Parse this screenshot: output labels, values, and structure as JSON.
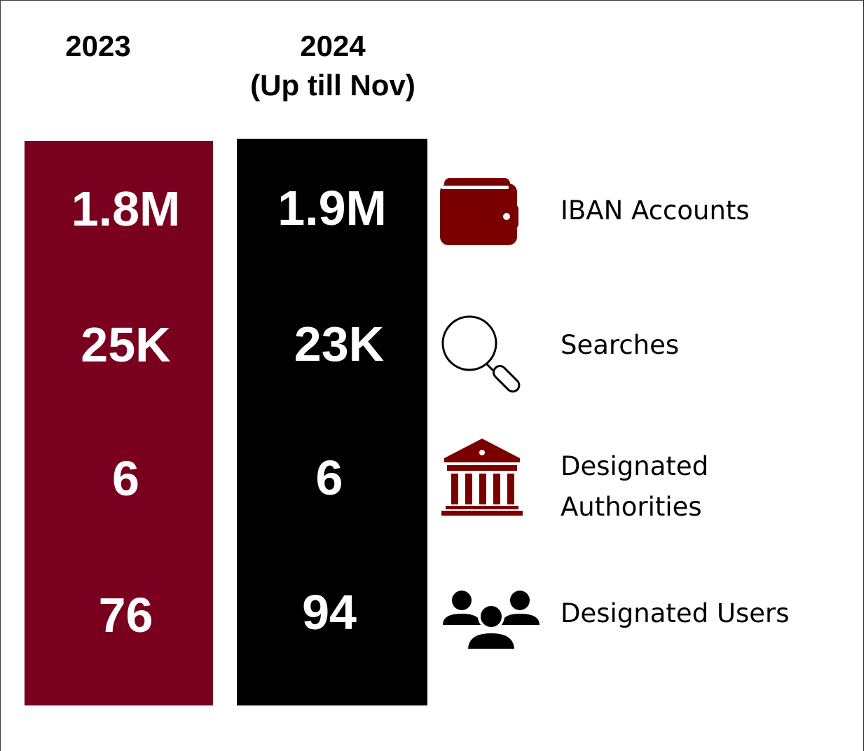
{
  "colors": {
    "year_2023": "#7a0020",
    "year_2024": "#000000",
    "icon": "#7a0000"
  },
  "columns": [
    {
      "heading": "2023",
      "values": [
        "1.8M",
        "25K",
        "6",
        "76"
      ]
    },
    {
      "heading": "2024\n(Up till Nov)",
      "heading_line1": "2024",
      "heading_line2": "(Up till Nov)",
      "values": [
        "1.9M",
        "23K",
        "6",
        "94"
      ]
    }
  ],
  "metrics": [
    {
      "label": "IBAN Accounts",
      "icon": "wallet-icon"
    },
    {
      "label": "Searches",
      "icon": "magnifier-icon"
    },
    {
      "label_line1": "Designated",
      "label_line2": "Authorities",
      "icon": "bank-building-icon"
    },
    {
      "label": "Designated Users",
      "icon": "users-group-icon"
    }
  ]
}
